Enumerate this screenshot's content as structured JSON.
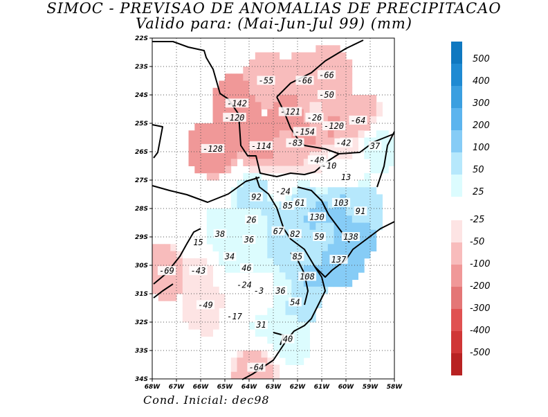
{
  "title_line1": "SIMOC - PREVISAO DE ANOMALIAS DE PRECIPITACAO",
  "title_line2": "Valido para: (Mai-Jun-Jul 99) (mm)",
  "footer": "Cond. Inicial: dec98",
  "chart_data": {
    "type": "heatmap",
    "title": "SIMOC - PREVISAO DE ANOMALIAS DE PRECIPITACAO",
    "subtitle": "Valido para: (Mai-Jun-Jul 99) (mm)",
    "units": "mm",
    "x_ticks": [
      "68W",
      "67W",
      "66W",
      "65W",
      "64W",
      "63W",
      "62W",
      "61W",
      "60W",
      "59W",
      "58W"
    ],
    "y_ticks": [
      "22S",
      "23S",
      "24S",
      "25S",
      "26S",
      "27S",
      "28S",
      "29S",
      "30S",
      "31S",
      "32S",
      "33S",
      "34S"
    ],
    "colorbar_positive": [
      {
        "label": "500",
        "color": "#0f78c0"
      },
      {
        "label": "400",
        "color": "#1f8ad2"
      },
      {
        "label": "300",
        "color": "#3b9fe0"
      },
      {
        "label": "200",
        "color": "#5cb4ee"
      },
      {
        "label": "100",
        "color": "#86ccf6"
      },
      {
        "label": "50",
        "color": "#b6e8fc"
      },
      {
        "label": "25",
        "color": "#dcfcfe"
      }
    ],
    "colorbar_negative": [
      {
        "label": "-25",
        "color": "#fde4e4"
      },
      {
        "label": "-50",
        "color": "#f8bcbc"
      },
      {
        "label": "-100",
        "color": "#f09898"
      },
      {
        "label": "-200",
        "color": "#e47676"
      },
      {
        "label": "-300",
        "color": "#e05252"
      },
      {
        "label": "-400",
        "color": "#d03636"
      },
      {
        "label": "-500",
        "color": "#b82222"
      }
    ],
    "values": [
      {
        "label": "-55",
        "lon": -63.3,
        "lat": -23.5
      },
      {
        "label": "-66",
        "lon": -61.7,
        "lat": -23.5
      },
      {
        "label": "-66",
        "lon": -60.8,
        "lat": -23.3
      },
      {
        "label": "-50",
        "lon": -60.8,
        "lat": -24.0
      },
      {
        "label": "-142",
        "lon": -64.5,
        "lat": -24.3
      },
      {
        "label": "-120",
        "lon": -64.6,
        "lat": -24.8
      },
      {
        "label": "-121",
        "lon": -62.3,
        "lat": -24.6
      },
      {
        "label": "-26",
        "lon": -61.3,
        "lat": -24.8
      },
      {
        "label": "-120",
        "lon": -60.5,
        "lat": -25.1
      },
      {
        "label": "-64",
        "lon": -59.5,
        "lat": -24.9
      },
      {
        "label": "-154",
        "lon": -61.7,
        "lat": -25.3
      },
      {
        "label": "-83",
        "lon": -62.1,
        "lat": -25.7
      },
      {
        "label": "-42",
        "lon": -60.1,
        "lat": -25.7
      },
      {
        "label": "-128",
        "lon": -65.5,
        "lat": -25.9
      },
      {
        "label": "-114",
        "lon": -63.5,
        "lat": -25.8
      },
      {
        "label": "37",
        "lon": -58.8,
        "lat": -25.8
      },
      {
        "label": "-48",
        "lon": -61.2,
        "lat": -26.3
      },
      {
        "label": "-10",
        "lon": -60.7,
        "lat": -26.5
      },
      {
        "label": "13",
        "lon": -60.0,
        "lat": -26.9
      },
      {
        "label": "-24",
        "lon": -62.6,
        "lat": -27.4
      },
      {
        "label": "92",
        "lon": -63.7,
        "lat": -27.6
      },
      {
        "label": "85",
        "lon": -62.4,
        "lat": -27.9
      },
      {
        "label": "61",
        "lon": -61.9,
        "lat": -27.8
      },
      {
        "label": "103",
        "lon": -60.2,
        "lat": -27.8
      },
      {
        "label": "91",
        "lon": -59.4,
        "lat": -28.1
      },
      {
        "label": "130",
        "lon": -61.2,
        "lat": -28.3
      },
      {
        "label": "26",
        "lon": -63.9,
        "lat": -28.4
      },
      {
        "label": "38",
        "lon": -65.2,
        "lat": -28.9
      },
      {
        "label": "36",
        "lon": -64.0,
        "lat": -29.1
      },
      {
        "label": "67",
        "lon": -62.8,
        "lat": -28.8
      },
      {
        "label": "82",
        "lon": -62.1,
        "lat": -28.9
      },
      {
        "label": "59",
        "lon": -61.1,
        "lat": -29.0
      },
      {
        "label": "138",
        "lon": -59.8,
        "lat": -29.0
      },
      {
        "label": "15",
        "lon": -66.1,
        "lat": -29.2
      },
      {
        "label": "34",
        "lon": -64.8,
        "lat": -29.7
      },
      {
        "label": "85",
        "lon": -62.0,
        "lat": -29.7
      },
      {
        "label": "137",
        "lon": -60.3,
        "lat": -29.8
      },
      {
        "label": "46",
        "lon": -64.1,
        "lat": -30.1
      },
      {
        "label": "-69",
        "lon": -67.4,
        "lat": -30.2
      },
      {
        "label": "-43",
        "lon": -66.1,
        "lat": -30.2
      },
      {
        "label": "108",
        "lon": -61.6,
        "lat": -30.4
      },
      {
        "label": "-24",
        "lon": -64.2,
        "lat": -30.7
      },
      {
        "label": "-3",
        "lon": -63.6,
        "lat": -30.9
      },
      {
        "label": "36",
        "lon": -62.7,
        "lat": -30.9
      },
      {
        "label": "54",
        "lon": -62.1,
        "lat": -31.3
      },
      {
        "label": "-49",
        "lon": -65.8,
        "lat": -31.4
      },
      {
        "label": "-17",
        "lon": -64.6,
        "lat": -31.8
      },
      {
        "label": "31",
        "lon": -63.5,
        "lat": -32.1
      },
      {
        "label": "40",
        "lon": -62.4,
        "lat": -32.6
      },
      {
        "label": "-64",
        "lon": -63.7,
        "lat": -33.6
      }
    ]
  }
}
